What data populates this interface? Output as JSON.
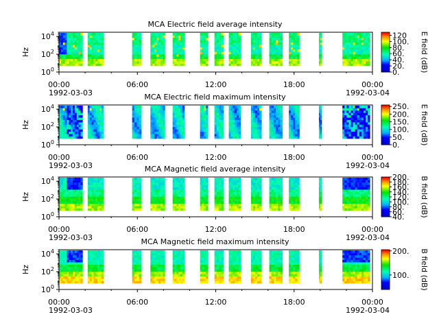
{
  "chart_data": [
    {
      "type": "heatmap",
      "title": "MCA  Electric field average intensity",
      "ylabel": "Hz",
      "y_scale": "log",
      "yticks": [
        {
          "base": "10",
          "exp": "0"
        },
        {
          "base": "10",
          "exp": "2"
        },
        {
          "base": "10",
          "exp": "4"
        }
      ],
      "ylim": [
        1,
        30000
      ],
      "xlim": [
        "1992-03-03T00:00",
        "1992-03-04T00:00"
      ],
      "xticks": [
        "00:00",
        "06:00",
        "12:00",
        "18:00",
        "00:00"
      ],
      "xtick_dates": [
        "1992-03-03",
        "1992-03-04"
      ],
      "colorbar": {
        "label": "E field (dB)",
        "ticks": [
          "0.",
          "20.",
          "40.",
          "60.",
          "80.",
          "100.",
          "120"
        ],
        "range": [
          0,
          130
        ]
      },
      "data_hours": [
        [
          0.0,
          0.6
        ],
        [
          0.6,
          1.8
        ],
        [
          2.2,
          3.4
        ],
        [
          5.6,
          6.3
        ],
        [
          7.0,
          8.1
        ],
        [
          8.7,
          9.6
        ],
        [
          10.8,
          11.4
        ],
        [
          11.9,
          12.6
        ],
        [
          13.0,
          13.9
        ],
        [
          14.7,
          15.5
        ],
        [
          16.1,
          17.1
        ],
        [
          17.6,
          18.4
        ],
        [
          19.9,
          20.1
        ],
        [
          21.7,
          23.8
        ]
      ],
      "spectrum": "lower frequencies ~80-100 dB (yellow/orange), mid ~40-60 dB (green), upper ~50-70 dB (cyan/green)"
    },
    {
      "type": "heatmap",
      "title": "MCA  Electric field maximum intensity",
      "ylabel": "Hz",
      "y_scale": "log",
      "yticks": [
        {
          "base": "10",
          "exp": "0"
        },
        {
          "base": "10",
          "exp": "2"
        },
        {
          "base": "10",
          "exp": "4"
        }
      ],
      "ylim": [
        1,
        30000
      ],
      "xlim": [
        "1992-03-03T00:00",
        "1992-03-04T00:00"
      ],
      "xticks": [
        "00:00",
        "06:00",
        "12:00",
        "18:00",
        "00:00"
      ],
      "xtick_dates": [
        "1992-03-03",
        "1992-03-04"
      ],
      "colorbar": {
        "label": "E field (dB)",
        "ticks": [
          "0.",
          "50.",
          "100.",
          "150.",
          "200.",
          "250."
        ],
        "range": [
          0,
          260
        ]
      },
      "data_hours": [
        [
          0.0,
          0.6
        ],
        [
          0.6,
          1.8
        ],
        [
          2.2,
          3.4
        ],
        [
          5.6,
          6.3
        ],
        [
          7.0,
          8.1
        ],
        [
          8.7,
          9.6
        ],
        [
          10.8,
          11.4
        ],
        [
          11.9,
          12.6
        ],
        [
          13.0,
          13.9
        ],
        [
          14.7,
          15.5
        ],
        [
          16.1,
          17.1
        ],
        [
          17.6,
          18.4
        ],
        [
          19.9,
          20.1
        ],
        [
          21.7,
          23.8
        ]
      ],
      "spectrum": "mostly ~80-130 dB (blue/cyan), dark blue dropouts near 01:00 and 23:00"
    },
    {
      "type": "heatmap",
      "title": "MCA  Magnetic field average intensity",
      "ylabel": "Hz",
      "y_scale": "log",
      "yticks": [
        {
          "base": "10",
          "exp": "0"
        },
        {
          "base": "10",
          "exp": "2"
        },
        {
          "base": "10",
          "exp": "4"
        }
      ],
      "ylim": [
        1,
        30000
      ],
      "xlim": [
        "1992-03-03T00:00",
        "1992-03-04T00:00"
      ],
      "xticks": [
        "00:00",
        "06:00",
        "12:00",
        "18:00",
        "00:00"
      ],
      "xtick_dates": [
        "1992-03-03",
        "1992-03-04"
      ],
      "colorbar": {
        "label": "B field (dB)",
        "ticks": [
          "40.",
          "60.",
          "80.",
          "100.",
          "120.",
          "140.",
          "160.",
          "180.",
          "200."
        ],
        "range": [
          40,
          200
        ]
      },
      "data_hours": [
        [
          0.0,
          0.6
        ],
        [
          0.6,
          1.8
        ],
        [
          2.2,
          3.4
        ],
        [
          5.6,
          6.3
        ],
        [
          7.0,
          8.1
        ],
        [
          8.7,
          9.6
        ],
        [
          10.8,
          11.4
        ],
        [
          11.9,
          12.6
        ],
        [
          13.0,
          13.9
        ],
        [
          14.7,
          15.5
        ],
        [
          16.1,
          17.1
        ],
        [
          17.6,
          18.4
        ],
        [
          19.9,
          20.1
        ],
        [
          21.7,
          23.8
        ]
      ],
      "spectrum": "low frequencies ~130-150 dB (green/yellow), high frequencies ~100-110 dB (cyan)"
    },
    {
      "type": "heatmap",
      "title": "MCA  Magnetic field maximum intensity",
      "ylabel": "Hz",
      "y_scale": "log",
      "yticks": [
        {
          "base": "10",
          "exp": "0"
        },
        {
          "base": "10",
          "exp": "2"
        },
        {
          "base": "10",
          "exp": "4"
        }
      ],
      "ylim": [
        1,
        30000
      ],
      "xlim": [
        "1992-03-03T00:00",
        "1992-03-04T00:00"
      ],
      "xticks": [
        "00:00",
        "06:00",
        "12:00",
        "18:00",
        "00:00"
      ],
      "xtick_dates": [
        "1992-03-03",
        "1992-03-04"
      ],
      "colorbar": {
        "label": "B field (dB)",
        "ticks": [
          "100.",
          "200."
        ],
        "range": [
          40,
          205
        ]
      },
      "data_hours": [
        [
          0.0,
          0.6
        ],
        [
          0.6,
          1.8
        ],
        [
          2.2,
          3.4
        ],
        [
          5.6,
          6.3
        ],
        [
          7.0,
          8.1
        ],
        [
          8.7,
          9.6
        ],
        [
          10.8,
          11.4
        ],
        [
          11.9,
          12.6
        ],
        [
          13.0,
          13.9
        ],
        [
          14.7,
          15.5
        ],
        [
          16.1,
          17.1
        ],
        [
          17.6,
          18.4
        ],
        [
          19.9,
          20.1
        ],
        [
          21.7,
          23.8
        ]
      ],
      "spectrum": "low frequencies ~150-180 dB (yellow/orange), high frequencies ~110-120 dB (cyan/green)"
    }
  ]
}
